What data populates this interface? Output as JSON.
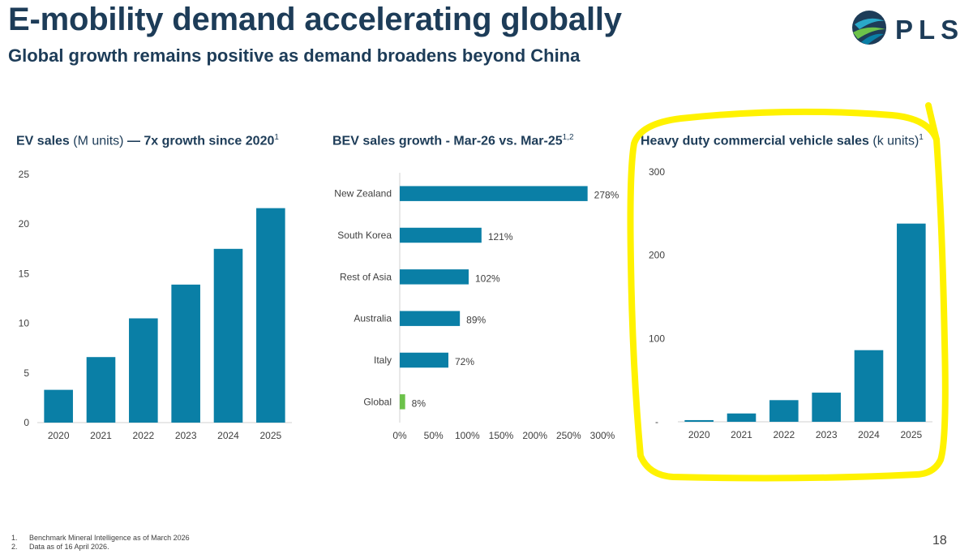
{
  "title": "E-mobility demand accelerating globally",
  "subtitle": "Global growth remains positive as demand broadens beyond China",
  "logo": {
    "text": "PLS",
    "icon": "globe-icon"
  },
  "colors": {
    "bar": "#0a7fa6",
    "bar_highlight": "#6cc24a",
    "title": "#1d3c58",
    "annotation": "#fff200"
  },
  "panels": [
    {
      "title_bold": "EV sales",
      "title_regular": " (M units) ",
      "title_bold2": "— 7x growth since 2020",
      "sup": "1"
    },
    {
      "title_bold": "BEV sales growth - Mar-26 vs. Mar-25",
      "title_regular": "",
      "title_bold2": "",
      "sup": "1,2"
    },
    {
      "title_bold": "Heavy duty commercial vehicle sales",
      "title_regular": " (k units)",
      "title_bold2": "",
      "sup": "1"
    }
  ],
  "chart_data": [
    {
      "type": "bar",
      "categories": [
        "2020",
        "2021",
        "2022",
        "2023",
        "2024",
        "2025"
      ],
      "values": [
        3.3,
        6.6,
        10.5,
        13.9,
        17.5,
        21.6
      ],
      "ylim": [
        0,
        25
      ],
      "yticks": [
        "0",
        "5",
        "10",
        "15",
        "20",
        "25"
      ]
    },
    {
      "type": "bar",
      "orientation": "horizontal",
      "categories": [
        "New Zealand",
        "South Korea",
        "Rest of Asia",
        "Australia",
        "Italy",
        "Global"
      ],
      "values": [
        278,
        121,
        102,
        89,
        72,
        8
      ],
      "value_labels": [
        "278%",
        "121%",
        "102%",
        "89%",
        "72%",
        "8%"
      ],
      "xlim": [
        0,
        300
      ],
      "xticks": [
        "0%",
        "50%",
        "100%",
        "150%",
        "200%",
        "250%",
        "300%"
      ],
      "highlight": "Global"
    },
    {
      "type": "bar",
      "categories": [
        "2020",
        "2021",
        "2022",
        "2023",
        "2024",
        "2025"
      ],
      "values": [
        2,
        10,
        26,
        35,
        86,
        238
      ],
      "ylim": [
        0,
        300
      ],
      "yticks": [
        "-",
        "100",
        "200",
        "300"
      ]
    }
  ],
  "footnotes": [
    {
      "num": "1.",
      "text": "Benchmark Mineral Intelligence as of March 2026"
    },
    {
      "num": "2.",
      "text": "Data as of 16 April 2026."
    }
  ],
  "page_number": "18"
}
